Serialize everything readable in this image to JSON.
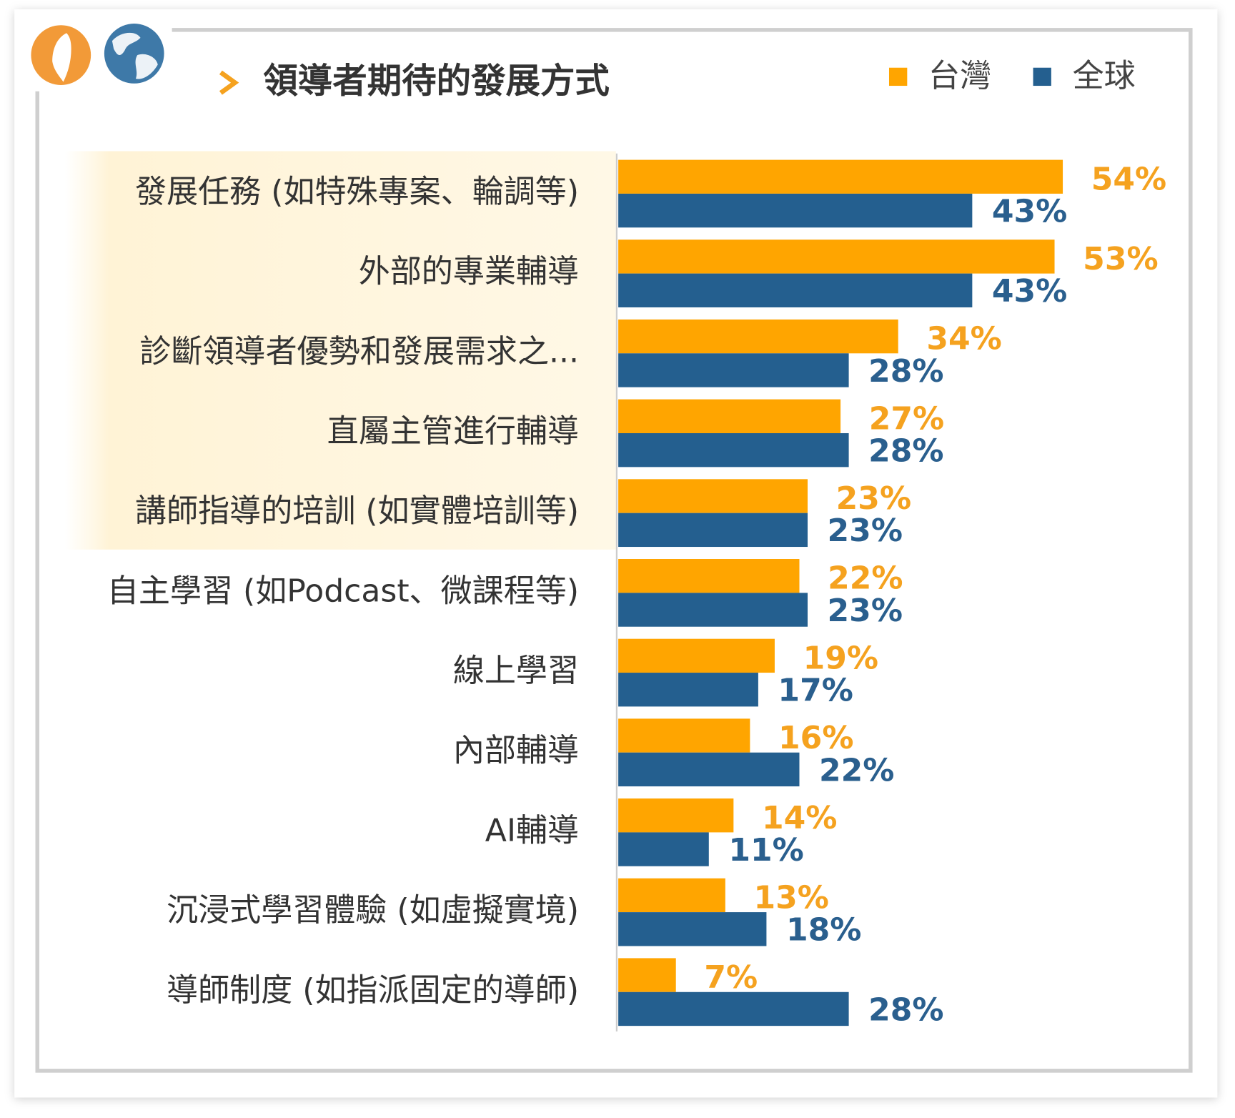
{
  "chart_data": {
    "type": "bar",
    "orientation": "horizontal",
    "title": "領導者期待的發展方式",
    "categories": [
      "發展任務 (如特殊專案、輪調等)",
      "外部的專業輔導",
      "診斷領導者優勢和發展需求之...",
      "直屬主管進行輔導",
      "講師指導的培訓 (如實體培訓等)",
      "自主學習 (如Podcast、微課程等)",
      "線上學習",
      "內部輔導",
      "AI輔導",
      "沉浸式學習體驗 (如虛擬實境)",
      "導師制度 (如指派固定的導師)"
    ],
    "series": [
      {
        "name": "台灣",
        "color": "#FFA500",
        "label_color": "#F5A21F",
        "values": [
          54,
          53,
          34,
          27,
          23,
          22,
          19,
          16,
          14,
          13,
          7
        ],
        "value_labels": [
          "54%",
          "53%",
          "34%",
          "27%",
          "23%",
          "22%",
          "19%",
          "16%",
          "14%",
          "13%",
          "7%"
        ]
      },
      {
        "name": "全球",
        "color": "#245F8F",
        "label_color": "#2A5F8E",
        "values": [
          43,
          43,
          28,
          28,
          23,
          23,
          17,
          22,
          11,
          18,
          28
        ],
        "value_labels": [
          "43%",
          "43%",
          "28%",
          "28%",
          "23%",
          "23%",
          "17%",
          "22%",
          "11%",
          "18%",
          "28%"
        ]
      }
    ],
    "xlim": [
      0,
      70
    ],
    "grid": false,
    "legend": "top-right"
  }
}
